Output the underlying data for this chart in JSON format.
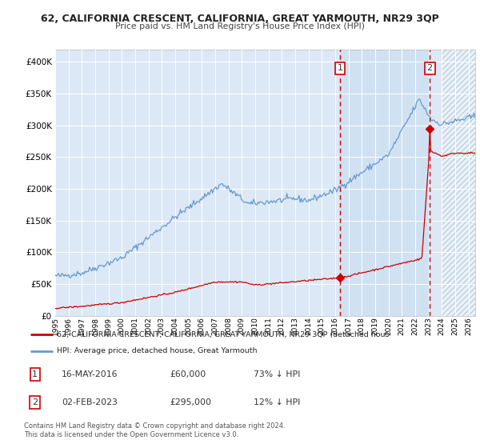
{
  "title": "62, CALIFORNIA CRESCENT, CALIFORNIA, GREAT YARMOUTH, NR29 3QP",
  "subtitle": "Price paid vs. HM Land Registry's House Price Index (HPI)",
  "legend_red": "62, CALIFORNIA CRESCENT, CALIFORNIA, GREAT YARMOUTH, NR29 3QP (detached hous",
  "legend_blue": "HPI: Average price, detached house, Great Yarmouth",
  "annotation1_label": "1",
  "annotation1_date": "16-MAY-2016",
  "annotation1_price": "£60,000",
  "annotation1_hpi": "73% ↓ HPI",
  "annotation1_year": 2016.37,
  "annotation1_value": 60000,
  "annotation2_label": "2",
  "annotation2_date": "02-FEB-2023",
  "annotation2_price": "£295,000",
  "annotation2_hpi": "12% ↓ HPI",
  "annotation2_year": 2023.09,
  "annotation2_value": 295000,
  "footer": "Contains HM Land Registry data © Crown copyright and database right 2024.\nThis data is licensed under the Open Government Licence v3.0.",
  "bg_color": "#dce8f5",
  "red_color": "#cc0000",
  "blue_color": "#6699cc",
  "ylim": [
    0,
    420000
  ],
  "xlim_start": 1995,
  "xlim_end": 2026.5,
  "hatch_start": 2024.0
}
